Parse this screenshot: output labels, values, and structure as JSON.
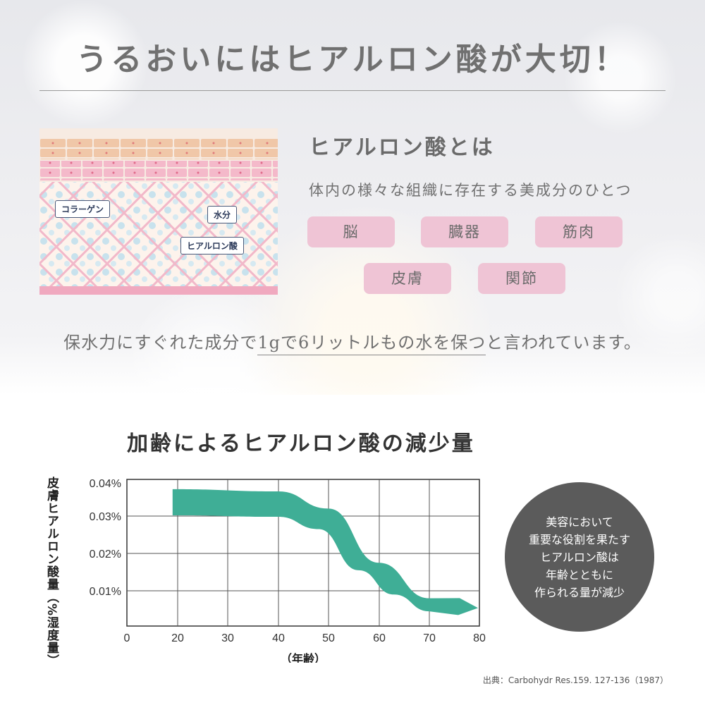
{
  "header": {
    "title": "うるおいにはヒアルロン酸が大切！"
  },
  "skin_diagram": {
    "labels": {
      "collagen": "コラーゲン",
      "water": "水分",
      "hyaluronic": "ヒアルロン酸"
    },
    "colors": {
      "top_layer": "#f0c7a8",
      "pink_layer": "#f3b5c8",
      "base_fill": "#fdf3ec",
      "lattice": "#f2b8c9",
      "droplet": "#bfe0ee"
    }
  },
  "about": {
    "heading": "ヒアルロン酸とは",
    "description": "体内の様々な組織に存在する美成分のひとつ",
    "tags": [
      "脳",
      "臓器",
      "筋肉",
      "皮膚",
      "関節"
    ],
    "tag_color": "#efc4d5"
  },
  "statement": {
    "before": "保水力にすぐれた成分で",
    "highlight": "1gで6リットルもの水を保つ",
    "after": "と言われています。"
  },
  "chart_section": {
    "title": "加齢によるヒアルロン酸の減少量",
    "info_lines": [
      "美容において",
      "重要な役割を果たす",
      "ヒアルロン酸は",
      "年齢とともに",
      "作られる量が減少"
    ],
    "source": "出典：Carbohydr Res.159. 127-136（1987）"
  },
  "chart_data": {
    "type": "area",
    "title": "加齢によるヒアルロン酸の減少量",
    "xlabel": "（年齢）",
    "ylabel": "皮膚ヒアルロン酸量（%湿度量）",
    "x_ticks": [
      "0",
      "20",
      "30",
      "40",
      "50",
      "60",
      "70",
      "80"
    ],
    "y_ticks": [
      "0.04%",
      "0.03%",
      "0.02%",
      "0.01%"
    ],
    "xlim": [
      0,
      80
    ],
    "ylim": [
      0,
      0.04
    ],
    "grid": true,
    "series_color": "#3fae96",
    "band_upper": [
      [
        18,
        0.0372
      ],
      [
        40,
        0.0366
      ],
      [
        50,
        0.032
      ],
      [
        60,
        0.0175
      ],
      [
        70,
        0.008
      ],
      [
        80,
        0.0054
      ]
    ],
    "band_lower": [
      [
        18,
        0.0302
      ],
      [
        40,
        0.0298
      ],
      [
        48,
        0.0265
      ],
      [
        56,
        0.0155
      ],
      [
        63,
        0.009
      ],
      [
        70,
        0.0045
      ],
      [
        80,
        0.0054
      ]
    ]
  }
}
